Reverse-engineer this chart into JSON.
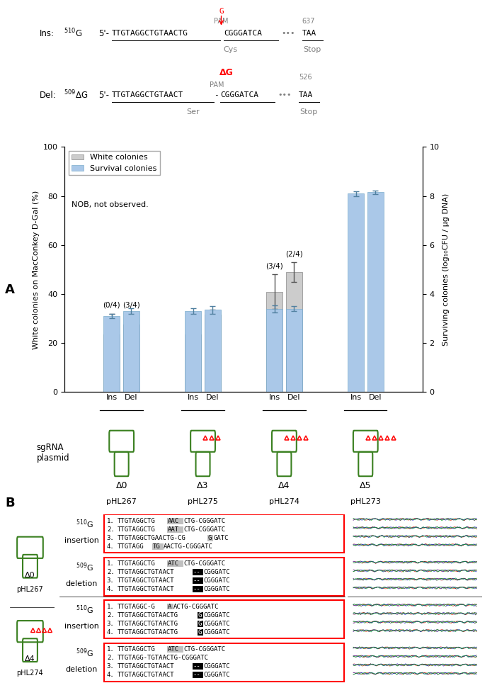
{
  "fig_width": 7.02,
  "fig_height": 9.88,
  "bg_color": "#ffffff",
  "bar_groups": [
    {
      "group_delta": "Δ0",
      "group_plasmid": "pHL267",
      "ins_white": 23.5,
      "ins_white_err": 8.5,
      "ins_survival": 3.1,
      "ins_survival_err": 0.08,
      "del_white": 27.5,
      "del_white_err": 4.5,
      "del_survival": 3.3,
      "del_survival_err": 0.12,
      "ins_annotation": "(0/4)",
      "del_annotation": "(3/4)",
      "ins_nob": false,
      "del_nob": false,
      "delta_symbols": 0
    },
    {
      "group_delta": "Δ3",
      "group_plasmid": "pHL275",
      "ins_white": 23.5,
      "ins_white_err": 2.5,
      "ins_survival": 3.3,
      "ins_survival_err": 0.12,
      "del_white": 31.5,
      "del_white_err": 2.0,
      "del_survival": 3.35,
      "del_survival_err": 0.15,
      "ins_annotation": "",
      "del_annotation": "",
      "ins_nob": false,
      "del_nob": false,
      "delta_symbols": 3
    },
    {
      "group_delta": "Δ4",
      "group_plasmid": "pHL274",
      "ins_white": 41.0,
      "ins_white_err": 7.0,
      "ins_survival": 3.4,
      "ins_survival_err": 0.15,
      "del_white": 49.0,
      "del_white_err": 4.0,
      "del_survival": 3.4,
      "del_survival_err": 0.1,
      "ins_annotation": "(3/4)",
      "del_annotation": "(2/4)",
      "ins_nob": false,
      "del_nob": false,
      "delta_symbols": 4
    },
    {
      "group_delta": "Δ5",
      "group_plasmid": "pHL273",
      "ins_white": 0,
      "ins_white_err": 0,
      "ins_survival": 8.1,
      "ins_survival_err": 0.1,
      "del_white": 0,
      "del_white_err": 0,
      "del_survival": 8.15,
      "del_survival_err": 0.08,
      "ins_annotation": "",
      "del_annotation": "",
      "ins_nob": true,
      "del_nob": true,
      "delta_symbols": 5
    }
  ],
  "white_color": "#cccccc",
  "survival_color": "#aac8e8",
  "ylabel_left": "White colonies on MacConkey D-Gal (%)",
  "ylabel_right": "Surviving colonies (log₁₀CFU / μg DNA)",
  "legend_white": "White colonies",
  "legend_survival": "Survival colonies",
  "legend_nob": "NOB, not observed.",
  "panel_b_boxes": [
    {
      "label_top": "  $^{510}$G",
      "label_bot": "insertion",
      "lines": [
        [
          "1.",
          "TTGTAGGCTG",
          "AAC",
          "CTG-CGGGATC",
          "gray"
        ],
        [
          "2.",
          "TTGTAGGCTG",
          "AAT",
          "CTG-CGGGATC",
          "gray"
        ],
        [
          "3.",
          "TTGTAGGCTGAACTG-CG",
          "G",
          "GATC",
          "gray"
        ],
        [
          "4.",
          "TTGTAGG",
          "TG",
          "AACTG-CGGGATC",
          "gray"
        ]
      ]
    },
    {
      "label_top": "  $^{509}$G",
      "label_bot": "deletion",
      "lines": [
        [
          "1.",
          "TTGTAGGCTG",
          "ATC",
          "CTG-CGGGATC",
          "gray"
        ],
        [
          "2.",
          "TTGTAGGCTGTAACT",
          "--",
          "CGGGATC",
          "black"
        ],
        [
          "3.",
          "TTGTAGGCTGTAACT",
          "--",
          "CGGGATC",
          "black"
        ],
        [
          "4.",
          "TTGTAGGCTGTAACT",
          "--",
          "CGGGATC",
          "black"
        ]
      ]
    },
    {
      "label_top": "  $^{510}$G",
      "label_bot": "insertion",
      "lines": [
        [
          "1.",
          "TTGTAGGC-G",
          "A",
          "ACTG-CGGGATC",
          "gray"
        ],
        [
          "2.",
          "TTGTAGGCTGTAACTG",
          "G",
          "CGGGATC",
          "black"
        ],
        [
          "3.",
          "TTGTAGGCTGTAACTG",
          "G",
          "CGGGATC",
          "black"
        ],
        [
          "4.",
          "TTGTAGGCTGTAACTG",
          "G",
          "CGGGATC",
          "black"
        ]
      ]
    },
    {
      "label_top": "  $^{509}$G",
      "label_bot": "deletion",
      "lines": [
        [
          "1.",
          "TTGTAGGCTG",
          "ATC",
          "CTG-CGGGATC",
          "gray"
        ],
        [
          "2.",
          "TTGTAGG-TGTAACTG-CGGGATC",
          "",
          "",
          "none"
        ],
        [
          "3.",
          "TTGTAGGCTGTAACT",
          "--",
          "CGGGATC",
          "black"
        ],
        [
          "4.",
          "TTGTAGGCTGTAACT",
          "--",
          "CGGGATC",
          "black"
        ]
      ]
    }
  ],
  "panel_b_left_labels": [
    [
      "Δ0",
      "pHL267",
      0,
      false
    ],
    [
      "Δ4",
      "pHL274",
      4,
      true
    ]
  ]
}
